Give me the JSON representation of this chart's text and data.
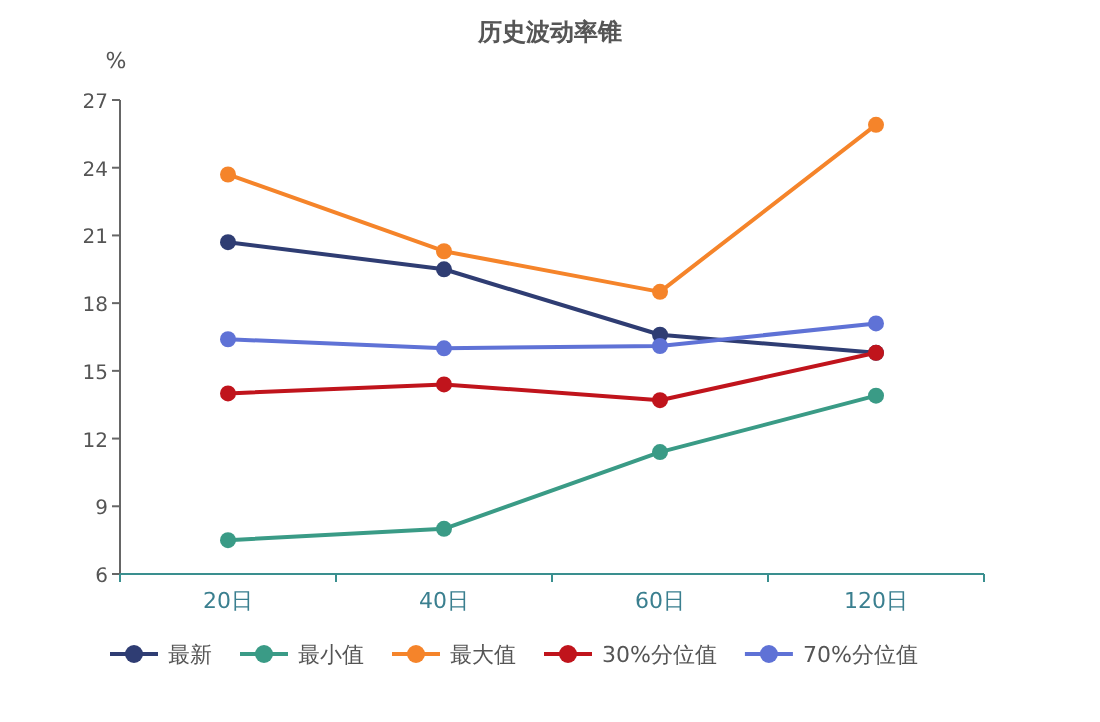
{
  "chart_data": {
    "type": "line",
    "title": "历史波动率锥",
    "ylabel": "%",
    "categories": [
      "20日",
      "40日",
      "60日",
      "120日"
    ],
    "series": [
      {
        "name": "最新",
        "color": "#2f3d73",
        "values": [
          20.7,
          19.5,
          16.6,
          15.8
        ]
      },
      {
        "name": "最小值",
        "color": "#3a9b86",
        "values": [
          7.5,
          8.0,
          11.4,
          13.9
        ]
      },
      {
        "name": "最大值",
        "color": "#f5842a",
        "values": [
          23.7,
          20.3,
          18.5,
          25.9
        ]
      },
      {
        "name": "30%分位值",
        "color": "#c0141c",
        "values": [
          14.0,
          14.4,
          13.7,
          15.8
        ]
      },
      {
        "name": "70%分位值",
        "color": "#5f72d6",
        "values": [
          16.4,
          16.0,
          16.1,
          17.1
        ]
      }
    ],
    "ylim": [
      6,
      27
    ],
    "yticks": [
      6,
      9,
      12,
      15,
      18,
      21,
      24,
      27
    ],
    "grid": false,
    "legend": "bottom",
    "marker": "circle",
    "line_style": "solid"
  }
}
